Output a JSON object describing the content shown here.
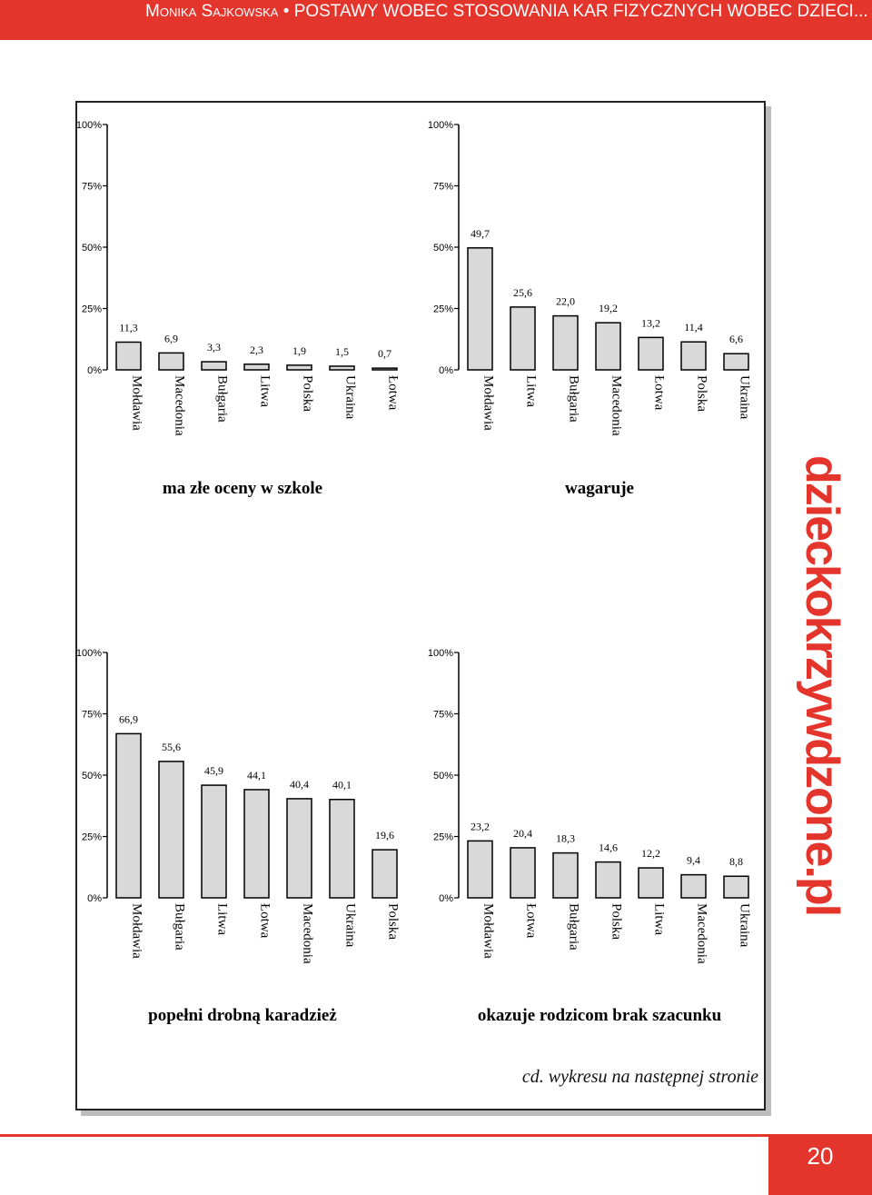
{
  "header": {
    "author": "Monika Sajkowska",
    "bullet": "•",
    "title": "POSTAWY WOBEC STOSOWANIA KAR FIZYCZNYCH WOBEC DZIECI..."
  },
  "chart_data": [
    {
      "type": "bar",
      "title": "ma złe oceny w szkole",
      "categories": [
        "Mołdawia",
        "Macedonia",
        "Bułgaria",
        "Litwa",
        "Polska",
        "Ukraina",
        "Łotwa"
      ],
      "values": [
        11.3,
        6.9,
        3.3,
        2.3,
        1.9,
        1.5,
        0.7
      ],
      "value_labels": [
        "11,3",
        "6,9",
        "3,3",
        "2,3",
        "1,9",
        "1,5",
        "0,7"
      ],
      "ylim": [
        0,
        100
      ],
      "yticks": [
        "0%",
        "25%",
        "50%",
        "75%",
        "100%"
      ]
    },
    {
      "type": "bar",
      "title": "wagaruje",
      "categories": [
        "Mołdawia",
        "Litwa",
        "Bułgaria",
        "Macedonia",
        "Łotwa",
        "Polska",
        "Ukraina"
      ],
      "values": [
        49.7,
        25.6,
        22.0,
        19.2,
        13.2,
        11.4,
        6.6
      ],
      "value_labels": [
        "49,7",
        "25,6",
        "22,0",
        "19,2",
        "13,2",
        "11,4",
        "6,6"
      ],
      "ylim": [
        0,
        100
      ],
      "yticks": [
        "0%",
        "25%",
        "50%",
        "75%",
        "100%"
      ]
    },
    {
      "type": "bar",
      "title": "popełni drobną karadzież",
      "categories": [
        "Mołdawia",
        "Bułgaria",
        "Litwa",
        "Łotwa",
        "Macedonia",
        "Ukraina",
        "Polska"
      ],
      "values": [
        66.9,
        55.6,
        45.9,
        44.1,
        40.4,
        40.1,
        19.6
      ],
      "value_labels": [
        "66,9",
        "55,6",
        "45,9",
        "44,1",
        "40,4",
        "40,1",
        "19,6"
      ],
      "ylim": [
        0,
        100
      ],
      "yticks": [
        "0%",
        "25%",
        "50%",
        "75%",
        "100%"
      ]
    },
    {
      "type": "bar",
      "title": "okazuje rodzicom brak szacunku",
      "categories": [
        "Mołdawia",
        "Łotwa",
        "Bułgaria",
        "Polska",
        "Litwa",
        "Macedonia",
        "Ukraina"
      ],
      "values": [
        23.2,
        20.4,
        18.3,
        14.6,
        12.2,
        9.4,
        8.8
      ],
      "value_labels": [
        "23,2",
        "20,4",
        "18,3",
        "14,6",
        "12,2",
        "9,4",
        "8,8"
      ],
      "ylim": [
        0,
        100
      ],
      "yticks": [
        "0%",
        "25%",
        "50%",
        "75%",
        "100%"
      ]
    }
  ],
  "colors": {
    "accent": "#e4352c",
    "bar_fill": "#d9d9d9",
    "bar_stroke": "#000000"
  },
  "note": "cd. wykresu na następnej stronie",
  "watermark": "dzieckokrzywdzone.pl",
  "page_number": "20"
}
